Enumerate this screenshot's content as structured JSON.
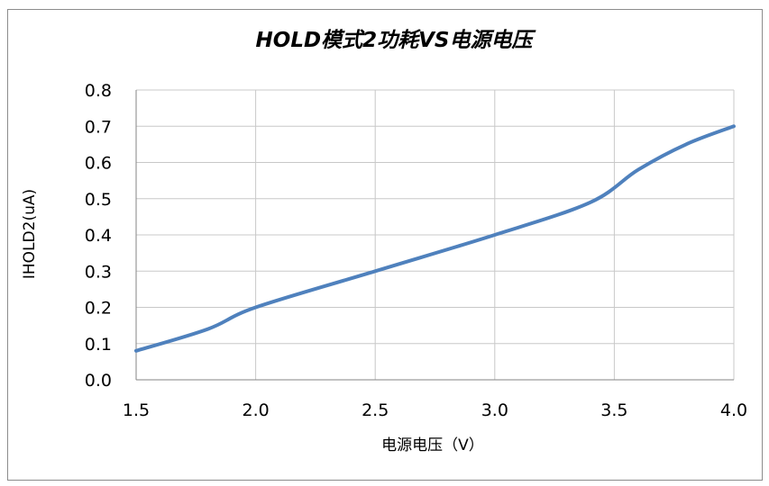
{
  "chart_data": {
    "type": "line",
    "title": "HOLD模式2功耗VS电源电压",
    "xlabel": "电源电压（V）",
    "ylabel": "IHOLD2(uA)",
    "x_ticks": [
      "1.5",
      "2.0",
      "2.5",
      "3.0",
      "3.5",
      "4.0"
    ],
    "y_ticks": [
      "0.0",
      "0.1",
      "0.2",
      "0.3",
      "0.4",
      "0.5",
      "0.6",
      "0.7",
      "0.8"
    ],
    "xlim": [
      1.5,
      4.0
    ],
    "ylim": [
      0,
      0.8
    ],
    "grid": true,
    "series": [
      {
        "color": "#4f81bd",
        "x": [
          1.5,
          1.8,
          2.0,
          2.5,
          3.0,
          3.4,
          3.6,
          3.8,
          4.0
        ],
        "y": [
          0.08,
          0.14,
          0.2,
          0.3,
          0.4,
          0.49,
          0.58,
          0.65,
          0.7
        ]
      }
    ]
  }
}
